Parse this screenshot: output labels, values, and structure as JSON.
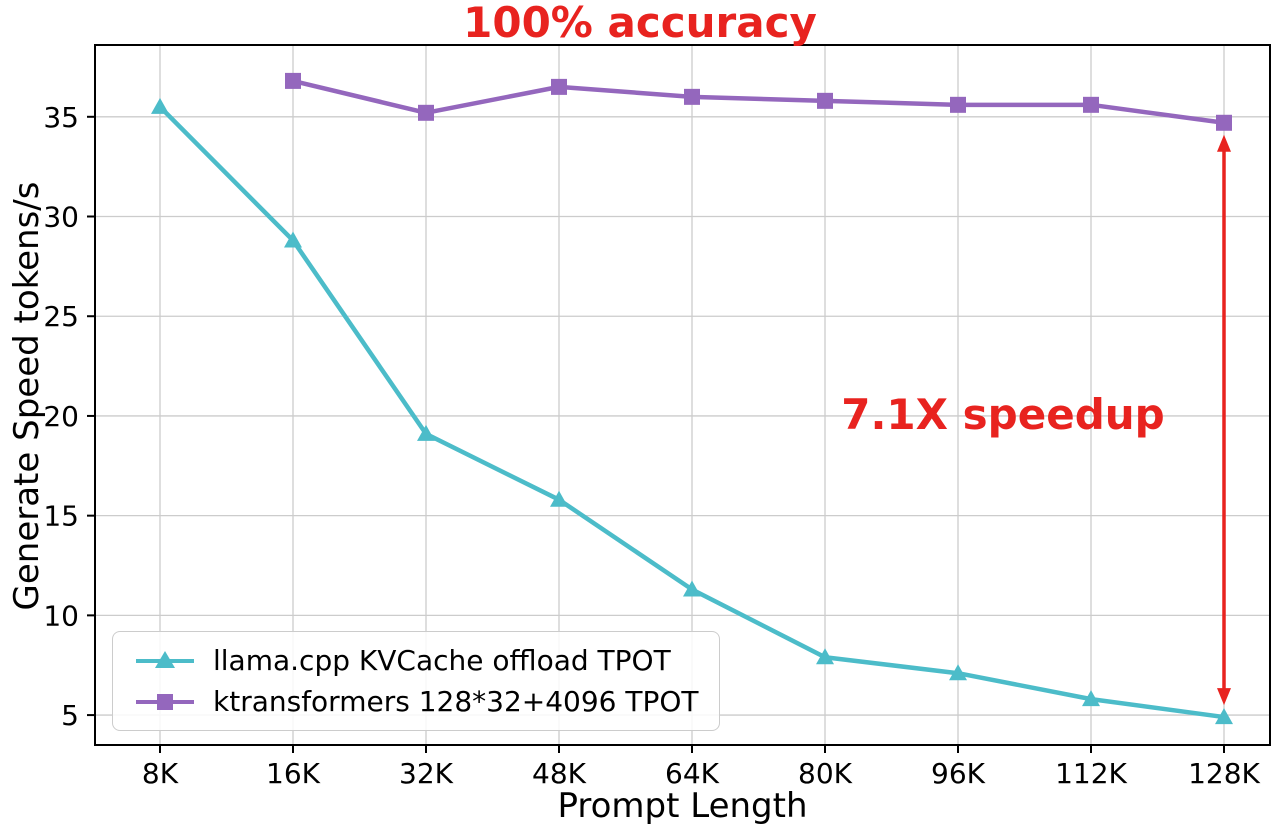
{
  "colors": {
    "accent_red": "#e8231f",
    "grid": "#cccccc",
    "axis": "#000000",
    "background": "#ffffff"
  },
  "chart_data": {
    "type": "line",
    "title": "100% accuracy",
    "xlabel": "Prompt Length",
    "ylabel": "Generate Speed tokens/s",
    "categories": [
      "8K",
      "16K",
      "32K",
      "48K",
      "64K",
      "80K",
      "96K",
      "112K",
      "128K"
    ],
    "yticks": [
      5,
      10,
      15,
      20,
      25,
      30,
      35
    ],
    "ylim": [
      3.5,
      38.6
    ],
    "grid": true,
    "legend_position": "lower left",
    "series": [
      {
        "name": "llama.cpp KVCache offload TPOT",
        "color": "#4cbcc9",
        "marker": "triangle",
        "values": [
          35.5,
          28.8,
          19.1,
          15.8,
          11.3,
          7.9,
          7.1,
          5.8,
          4.9
        ]
      },
      {
        "name": "ktransformers 128*32+4096 TPOT",
        "color": "#9467bd",
        "marker": "square",
        "values": [
          null,
          36.8,
          35.2,
          36.5,
          36.0,
          35.8,
          35.6,
          35.6,
          34.7
        ]
      }
    ],
    "annotation": {
      "text": "7.1X speedup",
      "category": "128K",
      "from_value": 34.7,
      "to_value": 4.9
    }
  }
}
